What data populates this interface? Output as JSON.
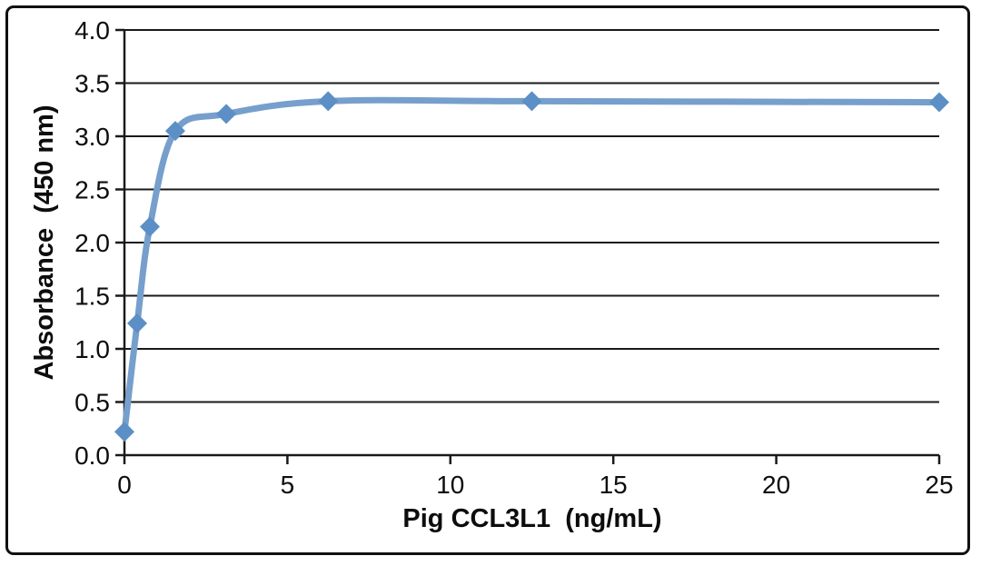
{
  "chart_data": {
    "type": "line",
    "title": "",
    "xlabel": "Pig CCL3L1  (ng/mL)",
    "ylabel": "Absorbance  (450 nm)",
    "x": [
      0,
      0.39,
      0.78,
      1.56,
      3.125,
      6.25,
      12.5,
      25
    ],
    "y": [
      0.22,
      1.24,
      2.15,
      3.05,
      3.21,
      3.33,
      3.33,
      3.32
    ],
    "xlim": [
      0,
      25
    ],
    "ylim": [
      0,
      4.0
    ],
    "xticks": [
      0,
      5,
      10,
      15,
      20,
      25
    ],
    "xtick_labels": [
      "0",
      "5",
      "10",
      "15",
      "20",
      "25"
    ],
    "yticks": [
      0,
      0.5,
      1.0,
      1.5,
      2.0,
      2.5,
      3.0,
      3.5,
      4.0
    ],
    "ytick_labels": [
      "0.0",
      "0.5",
      "1.0",
      "1.5",
      "2.0",
      "2.5",
      "3.0",
      "3.5",
      "4.0"
    ],
    "grid": "horizontal",
    "legend": "none",
    "marker": "diamond",
    "colors": {
      "line": "#769FCC",
      "marker": "#5C8FC5",
      "axis": "#1A1A1A",
      "grid": "#1A1A1A",
      "text": "#0D0D0D",
      "frame_border": "#101010",
      "background": "#FFFFFF"
    }
  }
}
